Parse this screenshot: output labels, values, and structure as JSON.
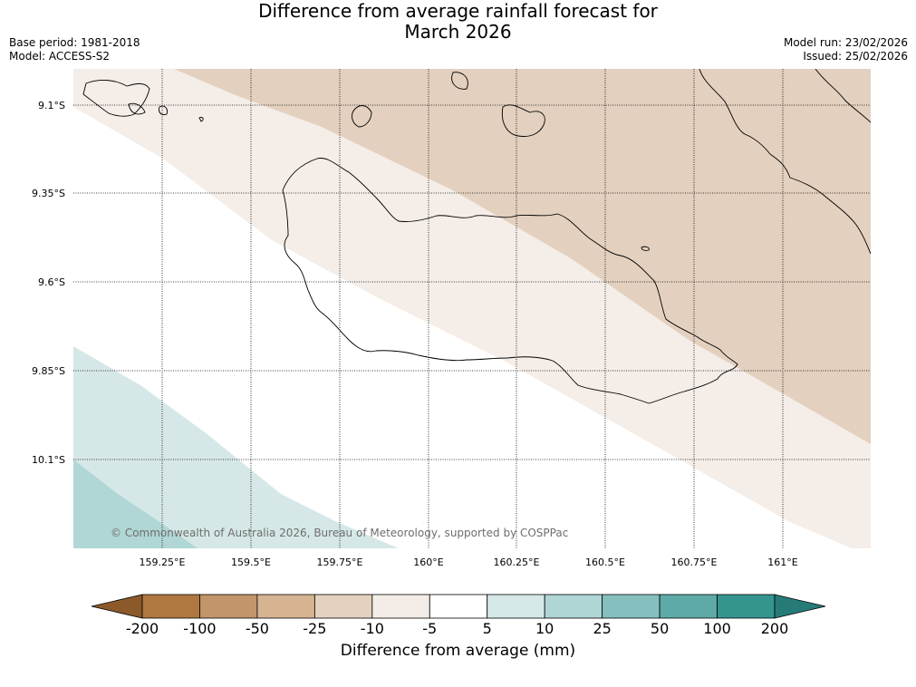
{
  "title_line1": "Difference from average rainfall forecast for",
  "title_line2": "March 2026",
  "meta_left": [
    "Base period: 1981-2018",
    "Model: ACCESS-S2"
  ],
  "meta_right": [
    "Model run: 23/02/2026",
    "Issued: 25/02/2026"
  ],
  "copyright": "© Commonwealth of Australia 2026, Bureau of Meteorology, supported by COSPPac",
  "latitude_labels": [
    "9.1°S",
    "9.35°S",
    "9.6°S",
    "9.85°S",
    "10.1°S"
  ],
  "longitude_labels": [
    "159.25°E",
    "159.5°E",
    "159.75°E",
    "160°E",
    "160.25°E",
    "160.5°E",
    "160.75°E",
    "161°E"
  ],
  "colorbar": {
    "label": "Difference from average (mm)",
    "tick_labels": [
      "-200",
      "-100",
      "-50",
      "-25",
      "-10",
      "-5",
      "5",
      "10",
      "25",
      "50",
      "100",
      "200"
    ],
    "colors": [
      "#8c5a2a",
      "#ae7840",
      "#c2956a",
      "#d6b492",
      "#e4d1bf",
      "#f4ede7",
      "#ffffff",
      "#d6e9e8",
      "#afd5d4",
      "#85c0bf",
      "#5eaaa8",
      "#34958f",
      "#267b78"
    ]
  },
  "map_zone_colors": {
    "zone_-25_-10": "#e3d0be",
    "zone_-10_-5": "#f4ede8",
    "zone_-5_5": "#ffffff",
    "zone_5_10": "#d5e8e7",
    "zone_10_25": "#b0d6d5"
  }
}
